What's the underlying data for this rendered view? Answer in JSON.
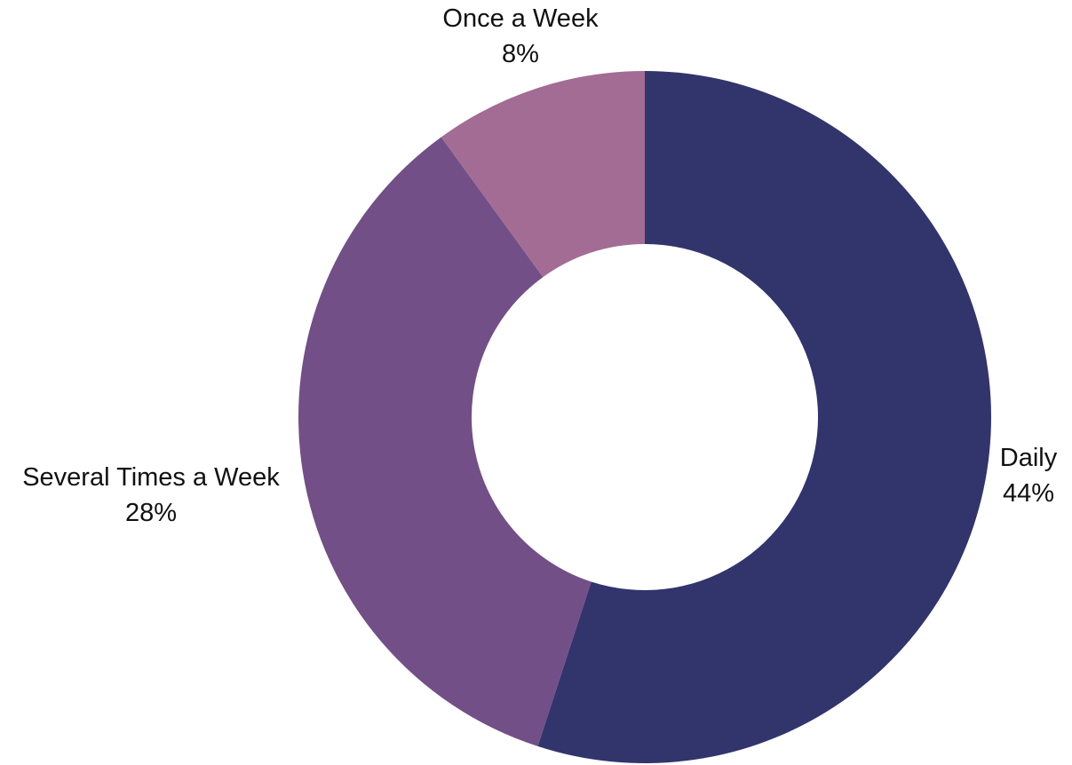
{
  "chart_data": {
    "type": "pie",
    "style": "donut",
    "title": "",
    "slices": [
      {
        "label": "Daily",
        "pct_label": "44%",
        "value": 55,
        "color": "#32346c"
      },
      {
        "label": "Several Times a Week",
        "pct_label": "28%",
        "value": 35,
        "color": "#724f86"
      },
      {
        "label": "Once a Week",
        "pct_label": "8%",
        "value": 10,
        "color": "#a36c94"
      }
    ],
    "start_angle": "12 o'clock",
    "direction": "clockwise",
    "legend": "none"
  }
}
